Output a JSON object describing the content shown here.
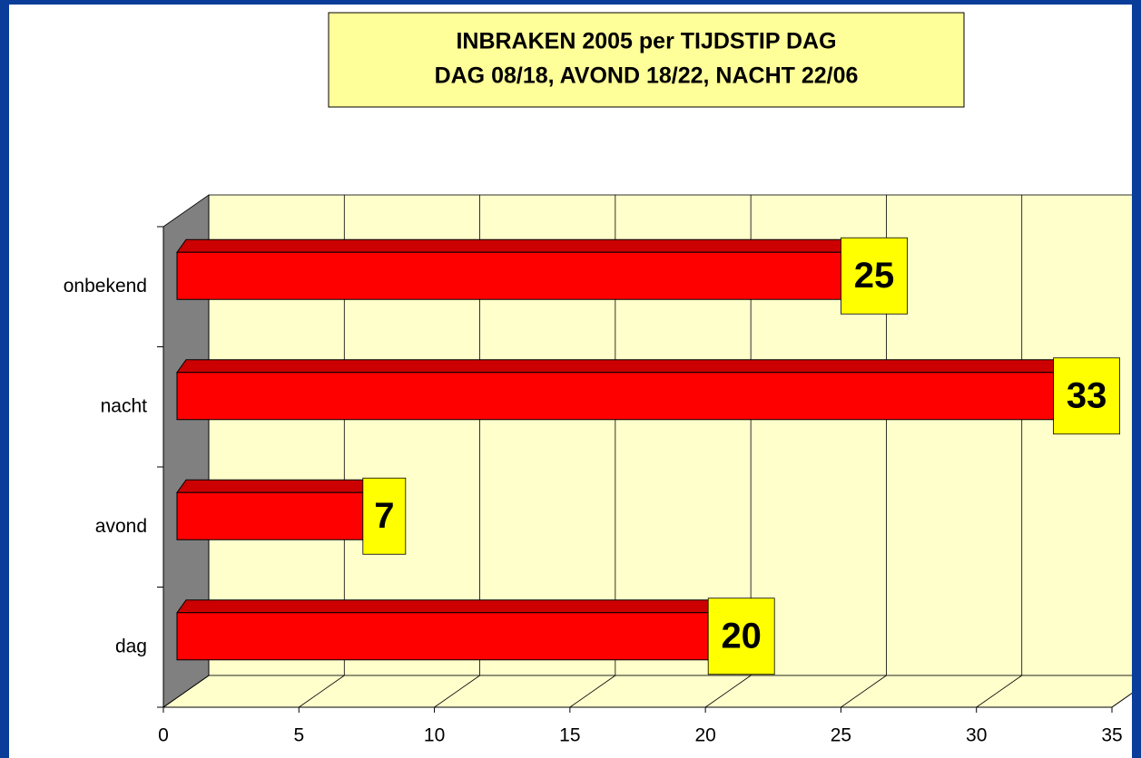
{
  "chart_data": {
    "type": "bar3d",
    "orientation": "horizontal",
    "title": "INBRAKEN 2005  per TIJDSTIP DAG",
    "subtitle": "DAG 08/18, AVOND 18/22, NACHT 22/06",
    "categories": [
      "dag",
      "avond",
      "nacht",
      "onbekend"
    ],
    "values": [
      20,
      7,
      33,
      25
    ],
    "color": "#ff0000",
    "xlim": [
      0,
      35
    ],
    "xticks": [
      0,
      5,
      10,
      15,
      20,
      25,
      30,
      35
    ],
    "grid": true
  }
}
